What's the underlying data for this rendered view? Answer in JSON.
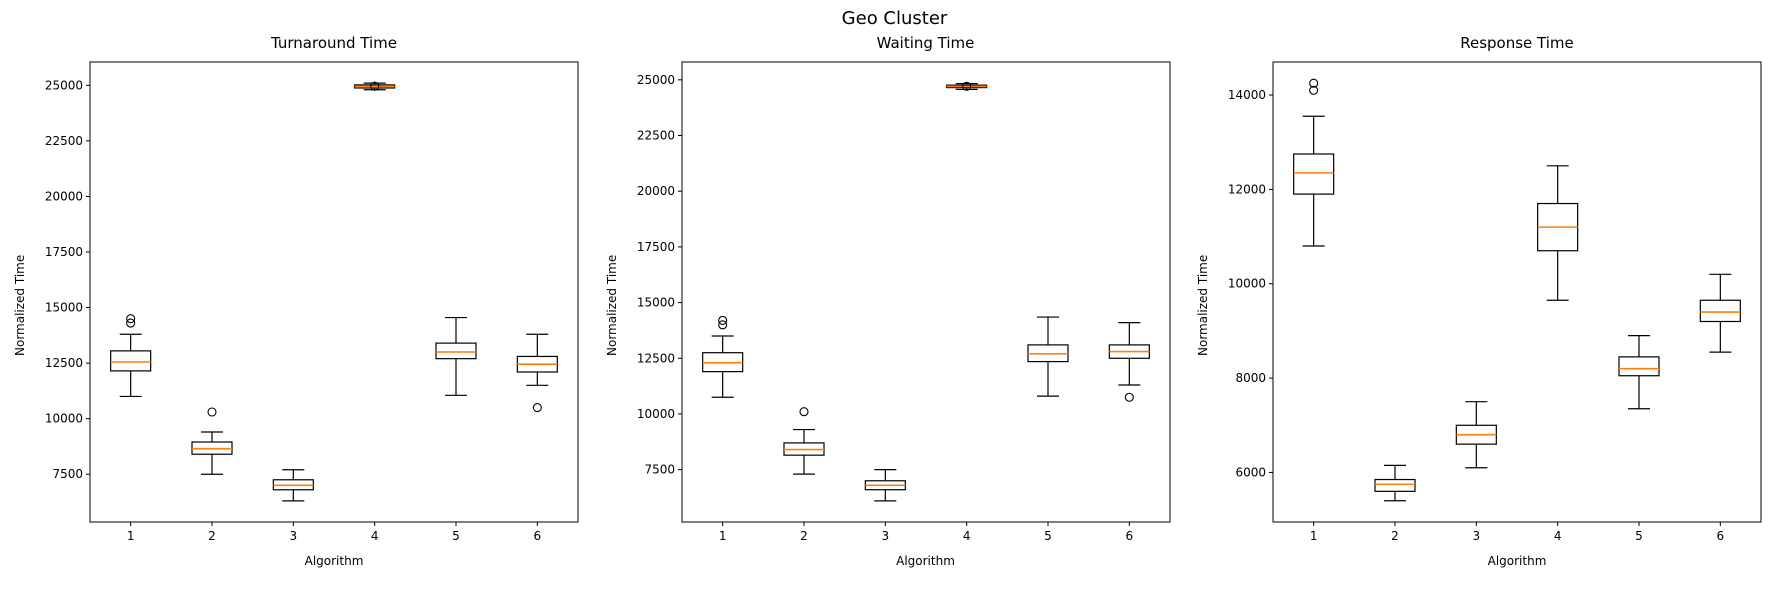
{
  "figure_title": "Geo Cluster",
  "colors": {
    "axis": "#000000",
    "text": "#000000",
    "box": "#000000",
    "median": "#ff7f0e",
    "flier": "#000000",
    "background": "#ffffff"
  },
  "chart_data": [
    {
      "type": "boxplot",
      "title": "Turnaround Time",
      "xlabel": "Algorithm",
      "ylabel": "Normalized Time",
      "categories": [
        "1",
        "2",
        "3",
        "4",
        "5",
        "6"
      ],
      "ylim": [
        5350,
        26050
      ],
      "yticks": [
        7500,
        10000,
        12500,
        15000,
        17500,
        20000,
        22500,
        25000
      ],
      "boxes": [
        {
          "whislo": 11000,
          "q1": 12150,
          "med": 12550,
          "q3": 13050,
          "whishi": 13800,
          "fliers": [
            14300,
            14500
          ]
        },
        {
          "whislo": 7500,
          "q1": 8400,
          "med": 8650,
          "q3": 8950,
          "whishi": 9400,
          "fliers": [
            10300
          ]
        },
        {
          "whislo": 6300,
          "q1": 6800,
          "med": 7000,
          "q3": 7250,
          "whishi": 7700,
          "fliers": []
        },
        {
          "whislo": 24800,
          "q1": 24880,
          "med": 24950,
          "q3": 25020,
          "whishi": 25100,
          "fliers": [
            24960
          ]
        },
        {
          "whislo": 11050,
          "q1": 12700,
          "med": 13000,
          "q3": 13400,
          "whishi": 14550,
          "fliers": []
        },
        {
          "whislo": 11500,
          "q1": 12100,
          "med": 12450,
          "q3": 12800,
          "whishi": 13800,
          "fliers": [
            10500
          ]
        }
      ]
    },
    {
      "type": "boxplot",
      "title": "Waiting Time",
      "xlabel": "Algorithm",
      "ylabel": "Normalized Time",
      "categories": [
        "1",
        "2",
        "3",
        "4",
        "5",
        "6"
      ],
      "ylim": [
        5150,
        25800
      ],
      "yticks": [
        7500,
        10000,
        12500,
        15000,
        17500,
        20000,
        22500,
        25000
      ],
      "boxes": [
        {
          "whislo": 10750,
          "q1": 11900,
          "med": 12300,
          "q3": 12750,
          "whishi": 13500,
          "fliers": [
            14000,
            14200
          ]
        },
        {
          "whislo": 7300,
          "q1": 8150,
          "med": 8400,
          "q3": 8700,
          "whishi": 9300,
          "fliers": [
            10100
          ]
        },
        {
          "whislo": 6100,
          "q1": 6600,
          "med": 6800,
          "q3": 7000,
          "whishi": 7500,
          "fliers": []
        },
        {
          "whislo": 24570,
          "q1": 24650,
          "med": 24700,
          "q3": 24760,
          "whishi": 24830,
          "fliers": [
            24710
          ]
        },
        {
          "whislo": 10800,
          "q1": 12350,
          "med": 12700,
          "q3": 13100,
          "whishi": 14350,
          "fliers": []
        },
        {
          "whislo": 11300,
          "q1": 12500,
          "med": 12800,
          "q3": 13100,
          "whishi": 14100,
          "fliers": [
            10750
          ]
        }
      ]
    },
    {
      "type": "boxplot",
      "title": "Response Time",
      "xlabel": "Algorithm",
      "ylabel": "Normalized Time",
      "categories": [
        "1",
        "2",
        "3",
        "4",
        "5",
        "6"
      ],
      "ylim": [
        4950,
        14700
      ],
      "yticks": [
        6000,
        8000,
        10000,
        12000,
        14000
      ],
      "boxes": [
        {
          "whislo": 10800,
          "q1": 11900,
          "med": 12350,
          "q3": 12750,
          "whishi": 13550,
          "fliers": [
            14100,
            14250
          ]
        },
        {
          "whislo": 5400,
          "q1": 5600,
          "med": 5750,
          "q3": 5850,
          "whishi": 6150,
          "fliers": []
        },
        {
          "whislo": 6100,
          "q1": 6600,
          "med": 6800,
          "q3": 7000,
          "whishi": 7500,
          "fliers": []
        },
        {
          "whislo": 9650,
          "q1": 10700,
          "med": 11200,
          "q3": 11700,
          "whishi": 12500,
          "fliers": []
        },
        {
          "whislo": 7350,
          "q1": 8050,
          "med": 8200,
          "q3": 8450,
          "whishi": 8900,
          "fliers": []
        },
        {
          "whislo": 8550,
          "q1": 9200,
          "med": 9400,
          "q3": 9650,
          "whishi": 10200,
          "fliers": []
        }
      ]
    }
  ]
}
